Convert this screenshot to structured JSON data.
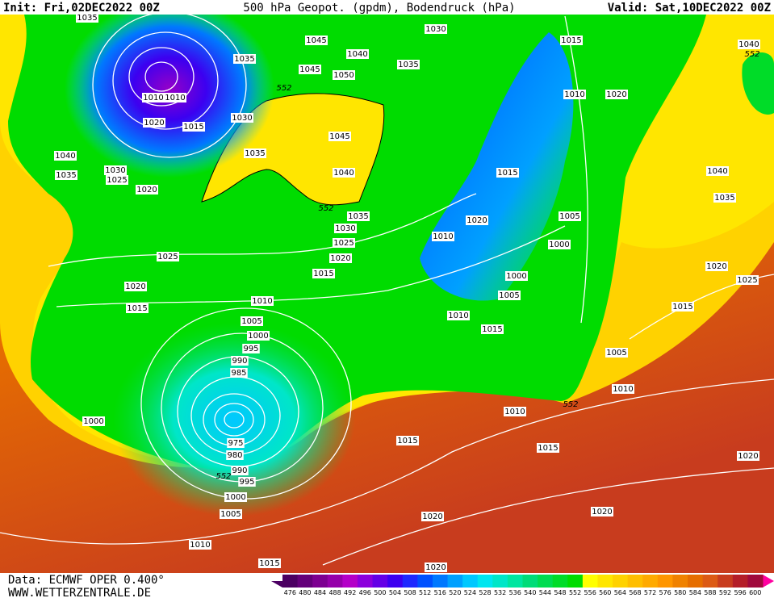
{
  "header": {
    "init": "Init: Fri,02DEC2022 00Z",
    "title": "500 hPa Geopot. (gpdm), Bodendruck (hPa)",
    "valid": "Valid: Sat,10DEC2022 00Z"
  },
  "isobar_labels": [
    "1035",
    "1045",
    "1035",
    "1040",
    "1035",
    "1030",
    "1015",
    "1045",
    "1050",
    "552",
    "1010",
    "1010",
    "1020",
    "1015",
    "1030",
    "1010",
    "1020",
    "1040",
    "552",
    "1045",
    "1035",
    "1040",
    "1030",
    "1035",
    "1025",
    "1020",
    "1040",
    "1015",
    "1040",
    "1035",
    "552",
    "1035",
    "1020",
    "1005",
    "1030",
    "1010",
    "1025",
    "1000",
    "1025",
    "1020",
    "1020",
    "1015",
    "1000",
    "1025",
    "1020",
    "1005",
    "1010",
    "1015",
    "1015",
    "1010",
    "1005",
    "1015",
    "1000",
    "995",
    "1005",
    "990",
    "985",
    "1010",
    "552",
    "1010",
    "1000",
    "1015",
    "1015",
    "975",
    "980",
    "1020",
    "990",
    "552",
    "995",
    "1000",
    "1020",
    "1005",
    "1020",
    "1010",
    "1015",
    "1020"
  ],
  "colorbar": {
    "labels": [
      476,
      480,
      484,
      488,
      492,
      496,
      500,
      504,
      508,
      512,
      516,
      520,
      524,
      528,
      532,
      536,
      540,
      544,
      548,
      552,
      556,
      560,
      564,
      568,
      572,
      576,
      580,
      584,
      588,
      592,
      596,
      600
    ],
    "colors": [
      "#4b0062",
      "#64007a",
      "#7d0091",
      "#9600aa",
      "#b400c8",
      "#8c00dc",
      "#6400e6",
      "#3c00f0",
      "#1e28ff",
      "#0050ff",
      "#0078ff",
      "#00a0ff",
      "#00c8ff",
      "#00e6f0",
      "#00e6c8",
      "#00e6a0",
      "#00dc78",
      "#00dc50",
      "#00dc28",
      "#00dc00",
      "#ffff00",
      "#ffe600",
      "#ffd200",
      "#ffbe00",
      "#ffaa00",
      "#ff9600",
      "#f08200",
      "#e66e00",
      "#dc5a14",
      "#c83c1e",
      "#b41e28",
      "#a00a3c"
    ]
  },
  "footer": {
    "data": "Data: ECMWF OPER 0.400°",
    "site": "WWW.WETTERZENTRALE.DE"
  }
}
